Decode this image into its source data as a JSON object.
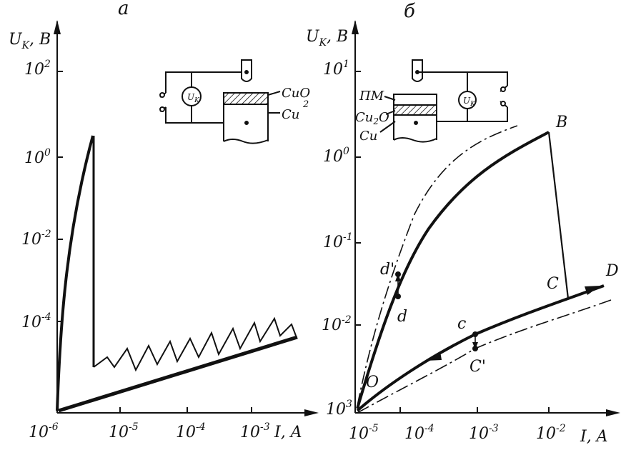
{
  "panels": [
    {
      "letter": "а",
      "y_axis": "U",
      "y_axis_sub": "K",
      "y_axis_unit": ", B",
      "y_ticks": [
        {
          "base": "10",
          "exp": "2"
        },
        {
          "base": "10",
          "exp": "0"
        },
        {
          "base": "10",
          "exp": "-2"
        },
        {
          "base": "10",
          "exp": "-4"
        }
      ],
      "x_ticks": [
        {
          "base": "10",
          "exp": "-6"
        },
        {
          "base": "10",
          "exp": "-5"
        },
        {
          "base": "10",
          "exp": "-4"
        },
        {
          "base": "10",
          "exp": "-3"
        }
      ],
      "x_axis": "I, A",
      "schematic": {
        "meter": "U",
        "meter_sub": "K",
        "layer_top": "CuO",
        "layer_top_sub": "2",
        "layer_bottom": "Cu"
      }
    },
    {
      "letter": "б",
      "y_axis": "U",
      "y_axis_sub": "K",
      "y_axis_unit": ", B",
      "y_ticks": [
        {
          "base": "10",
          "exp": "1"
        },
        {
          "base": "10",
          "exp": "0"
        },
        {
          "base": "10",
          "exp": "-1"
        },
        {
          "base": "10",
          "exp": "-2"
        },
        {
          "base": "10",
          "exp": "3"
        }
      ],
      "x_ticks": [
        {
          "base": "10",
          "exp": "-5"
        },
        {
          "base": "10",
          "exp": "-4"
        },
        {
          "base": "10",
          "exp": "-3"
        },
        {
          "base": "10",
          "exp": "-2"
        }
      ],
      "x_axis": "I, A",
      "points": [
        "O",
        "d'",
        "d",
        "B",
        "C",
        "D",
        "c",
        "C'"
      ],
      "schematic": {
        "meter": "U",
        "meter_sub": "K",
        "label_pm": "ПМ",
        "layer_mid": "Cu",
        "layer_mid_sub": "2",
        "layer_mid_rest": "O",
        "layer_bottom": "Cu"
      }
    }
  ]
}
